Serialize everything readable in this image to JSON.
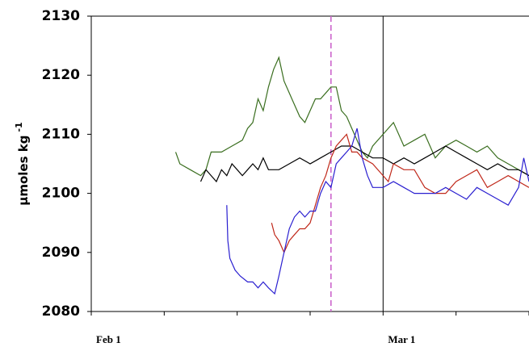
{
  "chart_data": {
    "type": "line",
    "ylabel": "µmoles kg",
    "ylabel_superscript": "-1",
    "xlim": [
      0,
      42
    ],
    "ylim": [
      2080,
      2130
    ],
    "yticks": [
      2080,
      2090,
      2100,
      2110,
      2120,
      2130
    ],
    "xticks": [
      {
        "value": 0,
        "label": "Feb 1"
      },
      {
        "value": 28,
        "label": "Mar 1"
      }
    ],
    "xminor_ticks": [
      7,
      14,
      21,
      35,
      42
    ],
    "vlines": [
      {
        "x": 23,
        "color": "#cc66cc",
        "style": "dashed"
      },
      {
        "x": 28,
        "color": "#000000",
        "style": "solid"
      }
    ],
    "series": [
      {
        "color": "#3a6e1f",
        "x": [
          8.1,
          8.5,
          9.5,
          10.5,
          11,
          11.5,
          12.5,
          13.5,
          14.5,
          15,
          15.5,
          16,
          16.5,
          17,
          17.5,
          18,
          18.5,
          19,
          19.5,
          20,
          20.5,
          21,
          21.5,
          22,
          22.5,
          23,
          23.5,
          24,
          24.5,
          25,
          25.5,
          26,
          26.5,
          27,
          28,
          29,
          30,
          31,
          32,
          33,
          34,
          35,
          36,
          37,
          38,
          39,
          40,
          41,
          42
        ],
        "values": [
          2107,
          2105,
          2104,
          2103,
          2104,
          2107,
          2107,
          2108,
          2109,
          2111,
          2112,
          2116,
          2114,
          2118,
          2121,
          2123,
          2119,
          2117,
          2115,
          2113,
          2112,
          2114,
          2116,
          2116,
          2117,
          2118,
          2118,
          2114,
          2113,
          2111,
          2109,
          2107,
          2106,
          2108,
          2110,
          2112,
          2108,
          2109,
          2110,
          2106,
          2108,
          2109,
          2108,
          2107,
          2108,
          2106,
          2105,
          2104,
          2103
        ]
      },
      {
        "color": "#000000",
        "x": [
          10.5,
          11,
          11.5,
          12,
          12.5,
          13,
          13.5,
          14,
          14.5,
          15,
          15.5,
          16,
          16.5,
          17,
          18,
          19,
          20,
          21,
          22,
          23,
          24,
          25,
          26,
          27,
          28,
          29,
          30,
          31,
          32,
          33,
          34,
          35,
          36,
          37,
          38,
          39,
          40,
          41,
          42
        ],
        "values": [
          2102,
          2104,
          2103,
          2102,
          2104,
          2103,
          2105,
          2104,
          2103,
          2104,
          2105,
          2104,
          2106,
          2104,
          2104,
          2105,
          2106,
          2105,
          2106,
          2107,
          2108,
          2108,
          2107,
          2106,
          2106,
          2105,
          2106,
          2105,
          2106,
          2107,
          2108,
          2107,
          2106,
          2105,
          2104,
          2105,
          2104,
          2104,
          2103
        ]
      },
      {
        "color": "#c0281a",
        "x": [
          17.3,
          17.6,
          18,
          18.5,
          19,
          19.5,
          20,
          20.5,
          21,
          21.5,
          22,
          22.5,
          23,
          23.5,
          24,
          24.5,
          25,
          25.5,
          26,
          27,
          28,
          28.5,
          29,
          30,
          31,
          32,
          33,
          34,
          35,
          36,
          37,
          38,
          39,
          40,
          41,
          42
        ],
        "values": [
          2095,
          2093,
          2092,
          2090,
          2092,
          2093,
          2094,
          2094,
          2095,
          2098,
          2101,
          2103,
          2106,
          2108,
          2109,
          2110,
          2107,
          2107,
          2106,
          2105,
          2103,
          2102,
          2105,
          2104,
          2104,
          2101,
          2100,
          2100,
          2102,
          2103,
          2104,
          2101,
          2102,
          2103,
          2102,
          2101
        ]
      },
      {
        "color": "#2a1fd0",
        "x": [
          13,
          13.1,
          13.3,
          13.8,
          14.3,
          15,
          15.5,
          16,
          16.5,
          17,
          17.6,
          18,
          18.5,
          19,
          19.5,
          20,
          20.5,
          21,
          21.5,
          22,
          22.5,
          23,
          23.5,
          24,
          24.5,
          25,
          25.5,
          26,
          26.5,
          27,
          28,
          29,
          30,
          31,
          32,
          33,
          34,
          35,
          36,
          37,
          38,
          39,
          40,
          41,
          41.5,
          42
        ],
        "values": [
          2098,
          2092,
          2089,
          2087,
          2086,
          2085,
          2085,
          2084,
          2085,
          2084,
          2083,
          2086,
          2090,
          2094,
          2096,
          2097,
          2096,
          2097,
          2097,
          2100,
          2102,
          2101,
          2105,
          2106,
          2107,
          2108,
          2111,
          2106,
          2103,
          2101,
          2101,
          2102,
          2101,
          2100,
          2100,
          2100,
          2101,
          2100,
          2099,
          2101,
          2100,
          2099,
          2098,
          2101,
          2106,
          2102
        ]
      }
    ]
  }
}
